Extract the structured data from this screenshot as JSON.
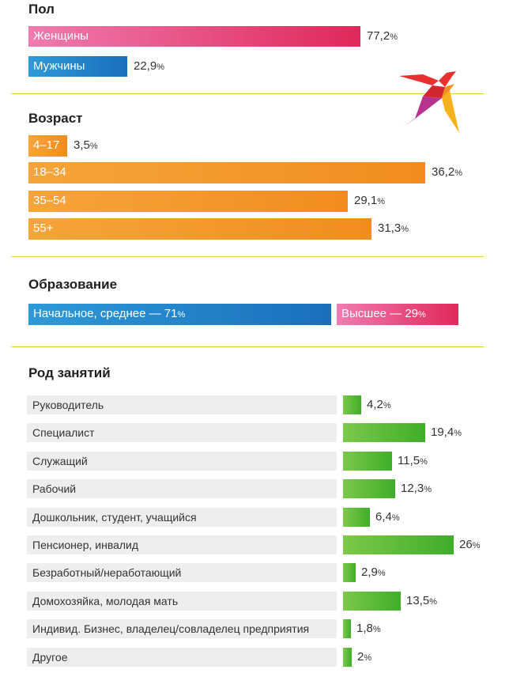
{
  "gender": {
    "title": "Пол",
    "items": [
      {
        "label": "Женщины",
        "value": "77,2",
        "num": 77.2
      },
      {
        "label": "Мужчины",
        "value": "22,9",
        "num": 22.9
      }
    ]
  },
  "age": {
    "title": "Возраст",
    "items": [
      {
        "label": "4–17",
        "value": "3,5",
        "num": 3.5
      },
      {
        "label": "18–34",
        "value": "36,2",
        "num": 36.2
      },
      {
        "label": "35–54",
        "value": "29,1",
        "num": 29.1
      },
      {
        "label": "55+",
        "value": "31,3",
        "num": 31.3
      }
    ]
  },
  "education": {
    "title": "Образование",
    "primary_label": "Начальное, среднее — 71",
    "primary_num": 71,
    "higher_label": "Высшее — 29",
    "higher_num": 29
  },
  "occupation": {
    "title": "Род занятий",
    "items": [
      {
        "label": "Руководитель",
        "value": "4,2",
        "num": 4.2
      },
      {
        "label": "Специалист",
        "value": "19,4",
        "num": 19.4
      },
      {
        "label": "Служащий",
        "value": "11,5",
        "num": 11.5
      },
      {
        "label": "Рабочий",
        "value": "12,3",
        "num": 12.3
      },
      {
        "label": "Дошкольник, студент, учащийся",
        "value": "6,4",
        "num": 6.4
      },
      {
        "label": "Пенсионер, инвалид",
        "value": "26",
        "num": 26
      },
      {
        "label": "Безработный/неработающий",
        "value": "2,9",
        "num": 2.9
      },
      {
        "label": "Домохозяйка, молодая мать",
        "value": "13,5",
        "num": 13.5
      },
      {
        "label": "Индивид. Бизнес, владелец/совладелец предприятия",
        "value": "1,8",
        "num": 1.8
      },
      {
        "label": "Другое",
        "value": "2",
        "num": 2
      }
    ]
  },
  "pct_sign": "%",
  "logo": {
    "icon": "swallow-bird-icon"
  },
  "chart_data": [
    {
      "type": "bar",
      "title": "Пол",
      "categories": [
        "Женщины",
        "Мужчины"
      ],
      "values": [
        77.2,
        22.9
      ],
      "unit": "%"
    },
    {
      "type": "bar",
      "title": "Возраст",
      "categories": [
        "4–17",
        "18–34",
        "35–54",
        "55+"
      ],
      "values": [
        3.5,
        36.2,
        29.1,
        31.3
      ],
      "unit": "%"
    },
    {
      "type": "bar",
      "title": "Образование",
      "categories": [
        "Начальное, среднее",
        "Высшее"
      ],
      "values": [
        71,
        29
      ],
      "unit": "%"
    },
    {
      "type": "bar",
      "title": "Род занятий",
      "categories": [
        "Руководитель",
        "Специалист",
        "Служащий",
        "Рабочий",
        "Дошкольник, студент, учащийся",
        "Пенсионер, инвалид",
        "Безработный/неработающий",
        "Домохозяйка, молодая мать",
        "Индивид. Бизнес, владелец/совладелец предприятия",
        "Другое"
      ],
      "values": [
        4.2,
        19.4,
        11.5,
        12.3,
        6.4,
        26,
        2.9,
        13.5,
        1.8,
        2
      ],
      "unit": "%"
    }
  ]
}
